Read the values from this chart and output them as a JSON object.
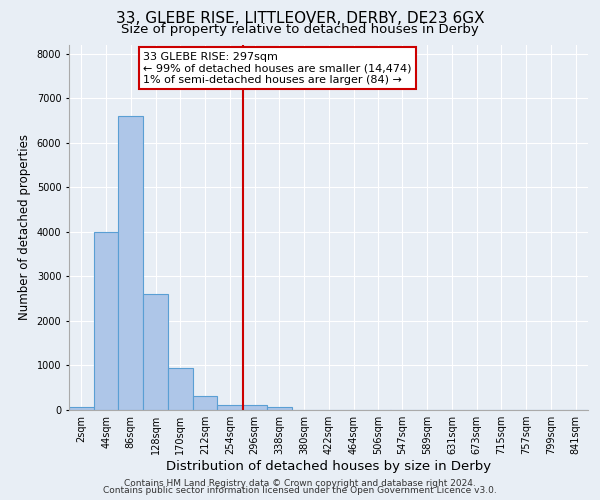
{
  "title": "33, GLEBE RISE, LITTLEOVER, DERBY, DE23 6GX",
  "subtitle": "Size of property relative to detached houses in Derby",
  "xlabel": "Distribution of detached houses by size in Derby",
  "ylabel": "Number of detached properties",
  "bin_labels": [
    "2sqm",
    "44sqm",
    "86sqm",
    "128sqm",
    "170sqm",
    "212sqm",
    "254sqm",
    "296sqm",
    "338sqm",
    "380sqm",
    "422sqm",
    "464sqm",
    "506sqm",
    "547sqm",
    "589sqm",
    "631sqm",
    "673sqm",
    "715sqm",
    "757sqm",
    "799sqm",
    "841sqm"
  ],
  "bin_edges": [
    2,
    44,
    86,
    128,
    170,
    212,
    254,
    296,
    338,
    380,
    422,
    464,
    506,
    547,
    589,
    631,
    673,
    715,
    757,
    799,
    841,
    883
  ],
  "bar_values": [
    75,
    4000,
    6600,
    2600,
    950,
    320,
    110,
    110,
    75,
    0,
    0,
    0,
    0,
    0,
    0,
    0,
    0,
    0,
    0,
    0,
    0
  ],
  "bar_color": "#aec6e8",
  "bar_edgecolor": "#5a9fd4",
  "bar_linewidth": 0.8,
  "vline_x": 297,
  "vline_color": "#cc0000",
  "vline_linewidth": 1.5,
  "annotation_title": "33 GLEBE RISE: 297sqm",
  "annotation_line1": "← 99% of detached houses are smaller (14,474)",
  "annotation_line2": "1% of semi-detached houses are larger (84) →",
  "annotation_box_edgecolor": "#cc0000",
  "annotation_box_facecolor": "#ffffff",
  "ylim": [
    0,
    8200
  ],
  "yticks": [
    0,
    1000,
    2000,
    3000,
    4000,
    5000,
    6000,
    7000,
    8000
  ],
  "background_color": "#e8eef5",
  "axes_facecolor": "#e8eef5",
  "grid_color": "#ffffff",
  "footer1": "Contains HM Land Registry data © Crown copyright and database right 2024.",
  "footer2": "Contains public sector information licensed under the Open Government Licence v3.0.",
  "title_fontsize": 11,
  "subtitle_fontsize": 9.5,
  "xlabel_fontsize": 9.5,
  "ylabel_fontsize": 8.5,
  "tick_fontsize": 7,
  "annotation_fontsize": 8,
  "footer_fontsize": 6.5
}
